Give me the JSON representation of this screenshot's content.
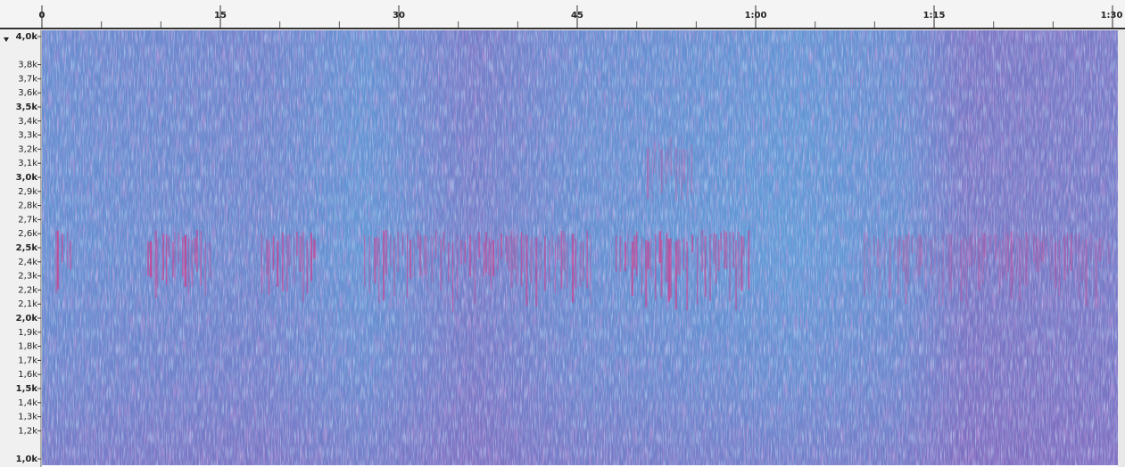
{
  "timeline": {
    "labels": [
      "0",
      "15",
      "30",
      "45",
      "1:00",
      "1:15",
      "1:30"
    ]
  },
  "frequency_axis": {
    "labels": [
      "4,0k",
      "3,8k",
      "3,7k",
      "3,6k",
      "3,5k",
      "3,4k",
      "3,3k",
      "3,2k",
      "3,1k",
      "3,0k",
      "2,9k",
      "2,8k",
      "2,7k",
      "2,6k",
      "2,5k",
      "2,4k",
      "2,3k",
      "2,2k",
      "2,1k",
      "2,0k",
      "1,9k",
      "1,8k",
      "1,7k",
      "1,6k",
      "1,5k",
      "1,4k",
      "1,3k",
      "1,2k",
      "1,0k"
    ]
  }
}
